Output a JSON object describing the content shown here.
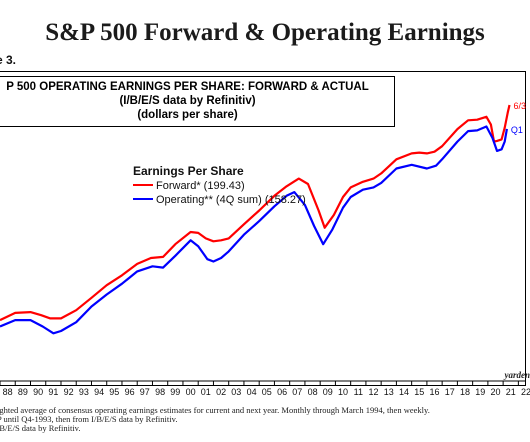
{
  "page": {
    "title": "S&P 500 Forward & Operating Earnings",
    "figure_label": "e 3.",
    "source": "yarden",
    "notes": [
      "ighted average of consensus operating earnings estimates for current and next year. Monthly through March 1994, then weekly.",
      "P until Q4-1993, then from I/B/E/S data by Refinitiv.",
      "/B/E/S data by Refinitiv."
    ]
  },
  "colors": {
    "forward": "#ff0000",
    "operating": "#0000ff",
    "text": "#1b1b1b"
  },
  "chart_data": {
    "type": "line",
    "title": "P 500 OPERATING EARNINGS PER SHARE: FORWARD & ACTUAL",
    "subtitle_1": "(I/B/E/S data by Refinitiv)",
    "subtitle_2": "(dollars per share)",
    "legend_title": "Earnings Per Share",
    "legend_position": "upper-left",
    "x_range": [
      1988.0,
      2022.5
    ],
    "y_scale": "log",
    "y_range": [
      16.2,
      235
    ],
    "grid": false,
    "x_tick_labels": [
      "88",
      "89",
      "90",
      "91",
      "92",
      "93",
      "94",
      "95",
      "96",
      "97",
      "98",
      "99",
      "00",
      "01",
      "02",
      "03",
      "04",
      "05",
      "06",
      "07",
      "08",
      "09",
      "10",
      "11",
      "12",
      "13",
      "14",
      "15",
      "16",
      "17",
      "18",
      "19",
      "20",
      "21",
      "22"
    ],
    "annotations": [
      {
        "text": "6/3",
        "series": "forward",
        "x": 2021.42,
        "y": 199.43
      },
      {
        "text": "Q1",
        "series": "operating",
        "x": 2021.25,
        "y": 158.27
      }
    ],
    "series": [
      {
        "name": "Forward*",
        "legend_label": "Forward* (199.43)",
        "color": "#ff0000",
        "points": [
          [
            1988.0,
            25.0
          ],
          [
            1989.0,
            26.8
          ],
          [
            1990.0,
            27.0
          ],
          [
            1990.7,
            26.2
          ],
          [
            1991.3,
            25.4
          ],
          [
            1992.0,
            25.4
          ],
          [
            1993.0,
            27.5
          ],
          [
            1994.0,
            31.0
          ],
          [
            1995.0,
            35.0
          ],
          [
            1996.0,
            38.5
          ],
          [
            1997.0,
            43.0
          ],
          [
            1997.9,
            45.5
          ],
          [
            1998.7,
            46.0
          ],
          [
            1999.5,
            52.0
          ],
          [
            2000.5,
            58.5
          ],
          [
            2001.0,
            58.0
          ],
          [
            2001.5,
            55.0
          ],
          [
            2002.0,
            53.5
          ],
          [
            2002.5,
            54.0
          ],
          [
            2003.0,
            55.0
          ],
          [
            2004.0,
            63.0
          ],
          [
            2005.0,
            72.0
          ],
          [
            2006.0,
            83.0
          ],
          [
            2006.8,
            91.0
          ],
          [
            2007.6,
            98.0
          ],
          [
            2008.2,
            93.0
          ],
          [
            2008.9,
            72.0
          ],
          [
            2009.3,
            61.0
          ],
          [
            2009.9,
            69.0
          ],
          [
            2010.5,
            82.0
          ],
          [
            2011.0,
            90.0
          ],
          [
            2011.8,
            95.0
          ],
          [
            2012.5,
            98.0
          ],
          [
            2013.0,
            103.0
          ],
          [
            2014.0,
            118.0
          ],
          [
            2015.0,
            125.0
          ],
          [
            2015.5,
            126.0
          ],
          [
            2016.0,
            125.0
          ],
          [
            2016.5,
            127.0
          ],
          [
            2017.0,
            134.0
          ],
          [
            2018.0,
            158.0
          ],
          [
            2018.7,
            172.0
          ],
          [
            2019.3,
            173.0
          ],
          [
            2019.9,
            178.0
          ],
          [
            2020.2,
            165.0
          ],
          [
            2020.4,
            140.0
          ],
          [
            2020.6,
            141.0
          ],
          [
            2020.9,
            143.0
          ],
          [
            2021.1,
            160.0
          ],
          [
            2021.3,
            185.0
          ],
          [
            2021.42,
            199.43
          ]
        ]
      },
      {
        "name": "Operating**",
        "legend_label": "Operating** (4Q sum) (158.27)",
        "color": "#0000ff",
        "points": [
          [
            1988.0,
            23.5
          ],
          [
            1989.0,
            25.0
          ],
          [
            1990.0,
            25.0
          ],
          [
            1990.8,
            23.5
          ],
          [
            1991.5,
            22.0
          ],
          [
            1992.0,
            22.5
          ],
          [
            1993.0,
            24.5
          ],
          [
            1994.0,
            28.5
          ],
          [
            1995.0,
            32.0
          ],
          [
            1996.0,
            35.5
          ],
          [
            1997.0,
            40.0
          ],
          [
            1998.0,
            42.0
          ],
          [
            1998.7,
            41.5
          ],
          [
            1999.5,
            46.5
          ],
          [
            2000.5,
            54.0
          ],
          [
            2001.0,
            51.0
          ],
          [
            2001.6,
            45.0
          ],
          [
            2002.0,
            44.0
          ],
          [
            2002.5,
            45.5
          ],
          [
            2003.0,
            48.5
          ],
          [
            2004.0,
            57.0
          ],
          [
            2005.0,
            65.0
          ],
          [
            2006.0,
            75.0
          ],
          [
            2006.8,
            83.0
          ],
          [
            2007.3,
            86.0
          ],
          [
            2008.0,
            76.0
          ],
          [
            2008.6,
            62.0
          ],
          [
            2009.2,
            52.0
          ],
          [
            2009.8,
            60.0
          ],
          [
            2010.5,
            74.0
          ],
          [
            2011.0,
            82.0
          ],
          [
            2011.8,
            88.0
          ],
          [
            2012.5,
            90.0
          ],
          [
            2013.0,
            94.0
          ],
          [
            2014.0,
            108.0
          ],
          [
            2015.0,
            112.0
          ],
          [
            2016.0,
            108.0
          ],
          [
            2016.6,
            111.0
          ],
          [
            2017.0,
            118.0
          ],
          [
            2018.0,
            140.0
          ],
          [
            2018.7,
            155.0
          ],
          [
            2019.3,
            156.0
          ],
          [
            2019.9,
            162.0
          ],
          [
            2020.3,
            145.0
          ],
          [
            2020.6,
            128.0
          ],
          [
            2020.9,
            130.0
          ],
          [
            2021.1,
            140.0
          ],
          [
            2021.25,
            158.27
          ]
        ]
      }
    ]
  }
}
